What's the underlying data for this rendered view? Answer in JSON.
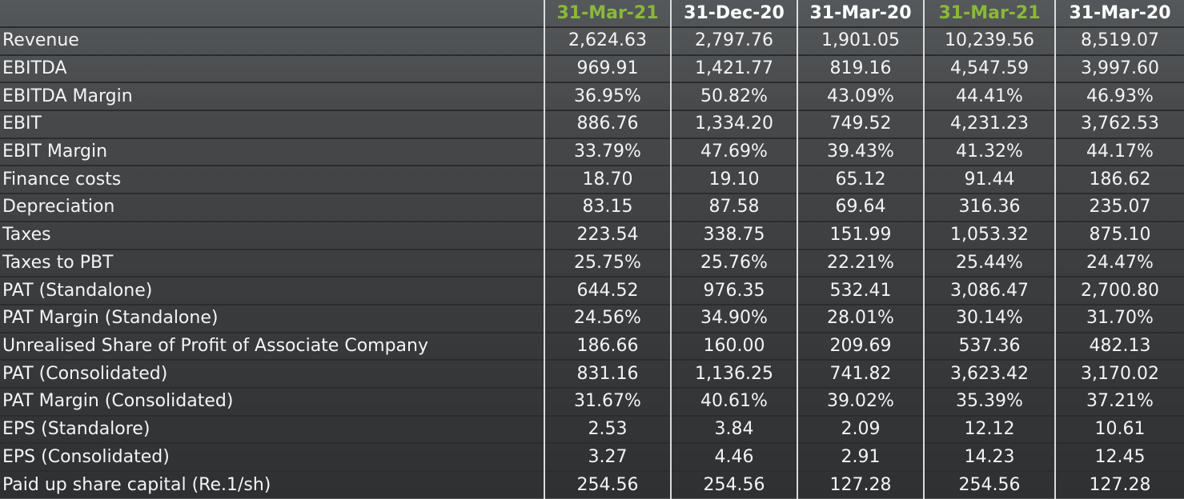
{
  "columns": [
    {
      "label": "31-Mar-21",
      "highlight": true
    },
    {
      "label": "31-Dec-20",
      "highlight": false
    },
    {
      "label": "31-Mar-20",
      "highlight": false
    },
    {
      "label": "31-Mar-21",
      "highlight": true
    },
    {
      "label": "31-Mar-20",
      "highlight": false
    }
  ],
  "colors": {
    "highlight": "#8ab83a",
    "text": "#ffffff"
  },
  "rows": [
    {
      "label": "Revenue",
      "values": [
        "2,624.63",
        "2,797.76",
        "1,901.05",
        "10,239.56",
        "8,519.07"
      ]
    },
    {
      "label": "EBITDA",
      "values": [
        "969.91",
        "1,421.77",
        "819.16",
        "4,547.59",
        "3,997.60"
      ]
    },
    {
      "label": "EBITDA Margin",
      "values": [
        "36.95%",
        "50.82%",
        "43.09%",
        "44.41%",
        "46.93%"
      ]
    },
    {
      "label": "EBIT",
      "values": [
        "886.76",
        "1,334.20",
        "749.52",
        "4,231.23",
        "3,762.53"
      ]
    },
    {
      "label": "EBIT Margin",
      "values": [
        "33.79%",
        "47.69%",
        "39.43%",
        "41.32%",
        "44.17%"
      ]
    },
    {
      "label": "Finance costs",
      "values": [
        "18.70",
        "19.10",
        "65.12",
        "91.44",
        "186.62"
      ]
    },
    {
      "label": "Depreciation",
      "values": [
        "83.15",
        "87.58",
        "69.64",
        "316.36",
        "235.07"
      ]
    },
    {
      "label": "Taxes",
      "values": [
        "223.54",
        "338.75",
        "151.99",
        "1,053.32",
        "875.10"
      ]
    },
    {
      "label": "Taxes to PBT",
      "values": [
        "25.75%",
        "25.76%",
        "22.21%",
        "25.44%",
        "24.47%"
      ]
    },
    {
      "label": "PAT (Standalone)",
      "values": [
        "644.52",
        "976.35",
        "532.41",
        "3,086.47",
        "2,700.80"
      ]
    },
    {
      "label": "PAT Margin (Standalone)",
      "values": [
        "24.56%",
        "34.90%",
        "28.01%",
        "30.14%",
        "31.70%"
      ]
    },
    {
      "label": "Unrealised Share of Profit of Associate Company",
      "values": [
        "186.66",
        "160.00",
        "209.69",
        "537.36",
        "482.13"
      ]
    },
    {
      "label": "PAT (Consolidated)",
      "values": [
        "831.16",
        "1,136.25",
        "741.82",
        "3,623.42",
        "3,170.02"
      ]
    },
    {
      "label": "PAT Margin (Consolidated)",
      "values": [
        "31.67%",
        "40.61%",
        "39.02%",
        "35.39%",
        "37.21%"
      ]
    },
    {
      "label": "EPS (Standalore)",
      "values": [
        "2.53",
        "3.84",
        "2.09",
        "12.12",
        "10.61"
      ]
    },
    {
      "label": "EPS (Consolidated)",
      "values": [
        "3.27",
        "4.46",
        "2.91",
        "14.23",
        "12.45"
      ]
    },
    {
      "label": "Paid up share capital (Re.1/sh)",
      "values": [
        "254.56",
        "254.56",
        "127.28",
        "254.56",
        "127.28"
      ]
    }
  ]
}
